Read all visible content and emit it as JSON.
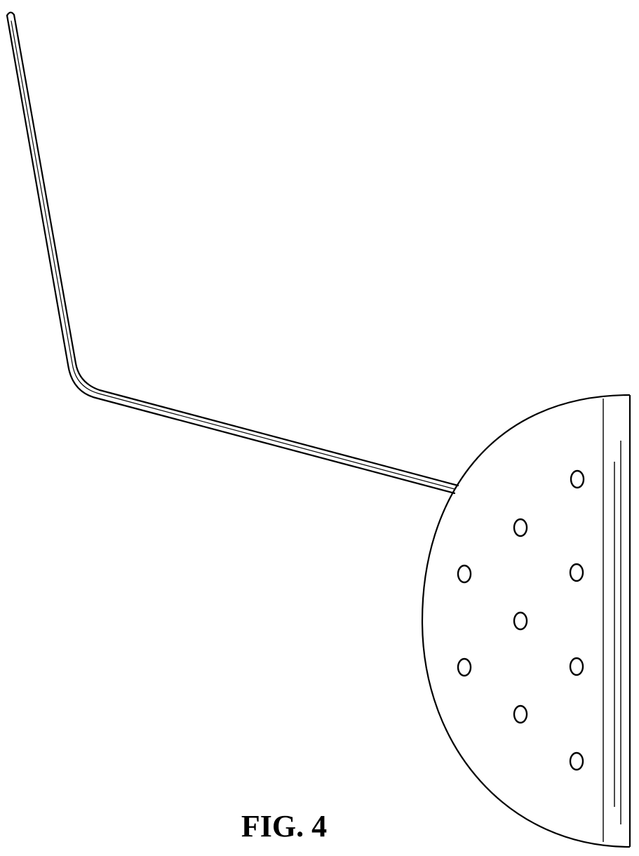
{
  "figure": {
    "caption": "FIG. 4",
    "line_color": "#000000",
    "background": "#ffffff",
    "hole_count": 9
  }
}
